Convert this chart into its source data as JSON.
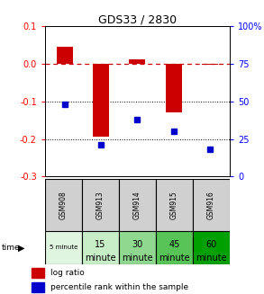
{
  "title": "GDS33 / 2830",
  "samples": [
    "GSM908",
    "GSM913",
    "GSM914",
    "GSM915",
    "GSM916"
  ],
  "time_labels_line1": [
    "5 minute",
    "15",
    "30",
    "45",
    "60"
  ],
  "time_labels_line2": [
    "",
    "minute",
    "minute",
    "minute",
    "minute"
  ],
  "time_colors": [
    "#e0f5e0",
    "#c8eec8",
    "#90d890",
    "#58c458",
    "#00a000"
  ],
  "log_ratio": [
    0.045,
    -0.193,
    0.012,
    -0.13,
    -0.003
  ],
  "percentile_rank_pct": [
    48,
    21,
    38,
    30,
    18
  ],
  "ylim_left": [
    -0.3,
    0.1
  ],
  "ylim_right": [
    0,
    100
  ],
  "yticks_left": [
    0.1,
    0.0,
    -0.1,
    -0.2,
    -0.3
  ],
  "yticks_right": [
    100,
    75,
    50,
    25,
    0
  ],
  "bar_color": "#cc0000",
  "dot_color": "#0000cc",
  "zero_line_color": "#cc0000",
  "bg_color": "#ffffff",
  "sample_row_color": "#d0d0d0",
  "bar_width": 0.45
}
